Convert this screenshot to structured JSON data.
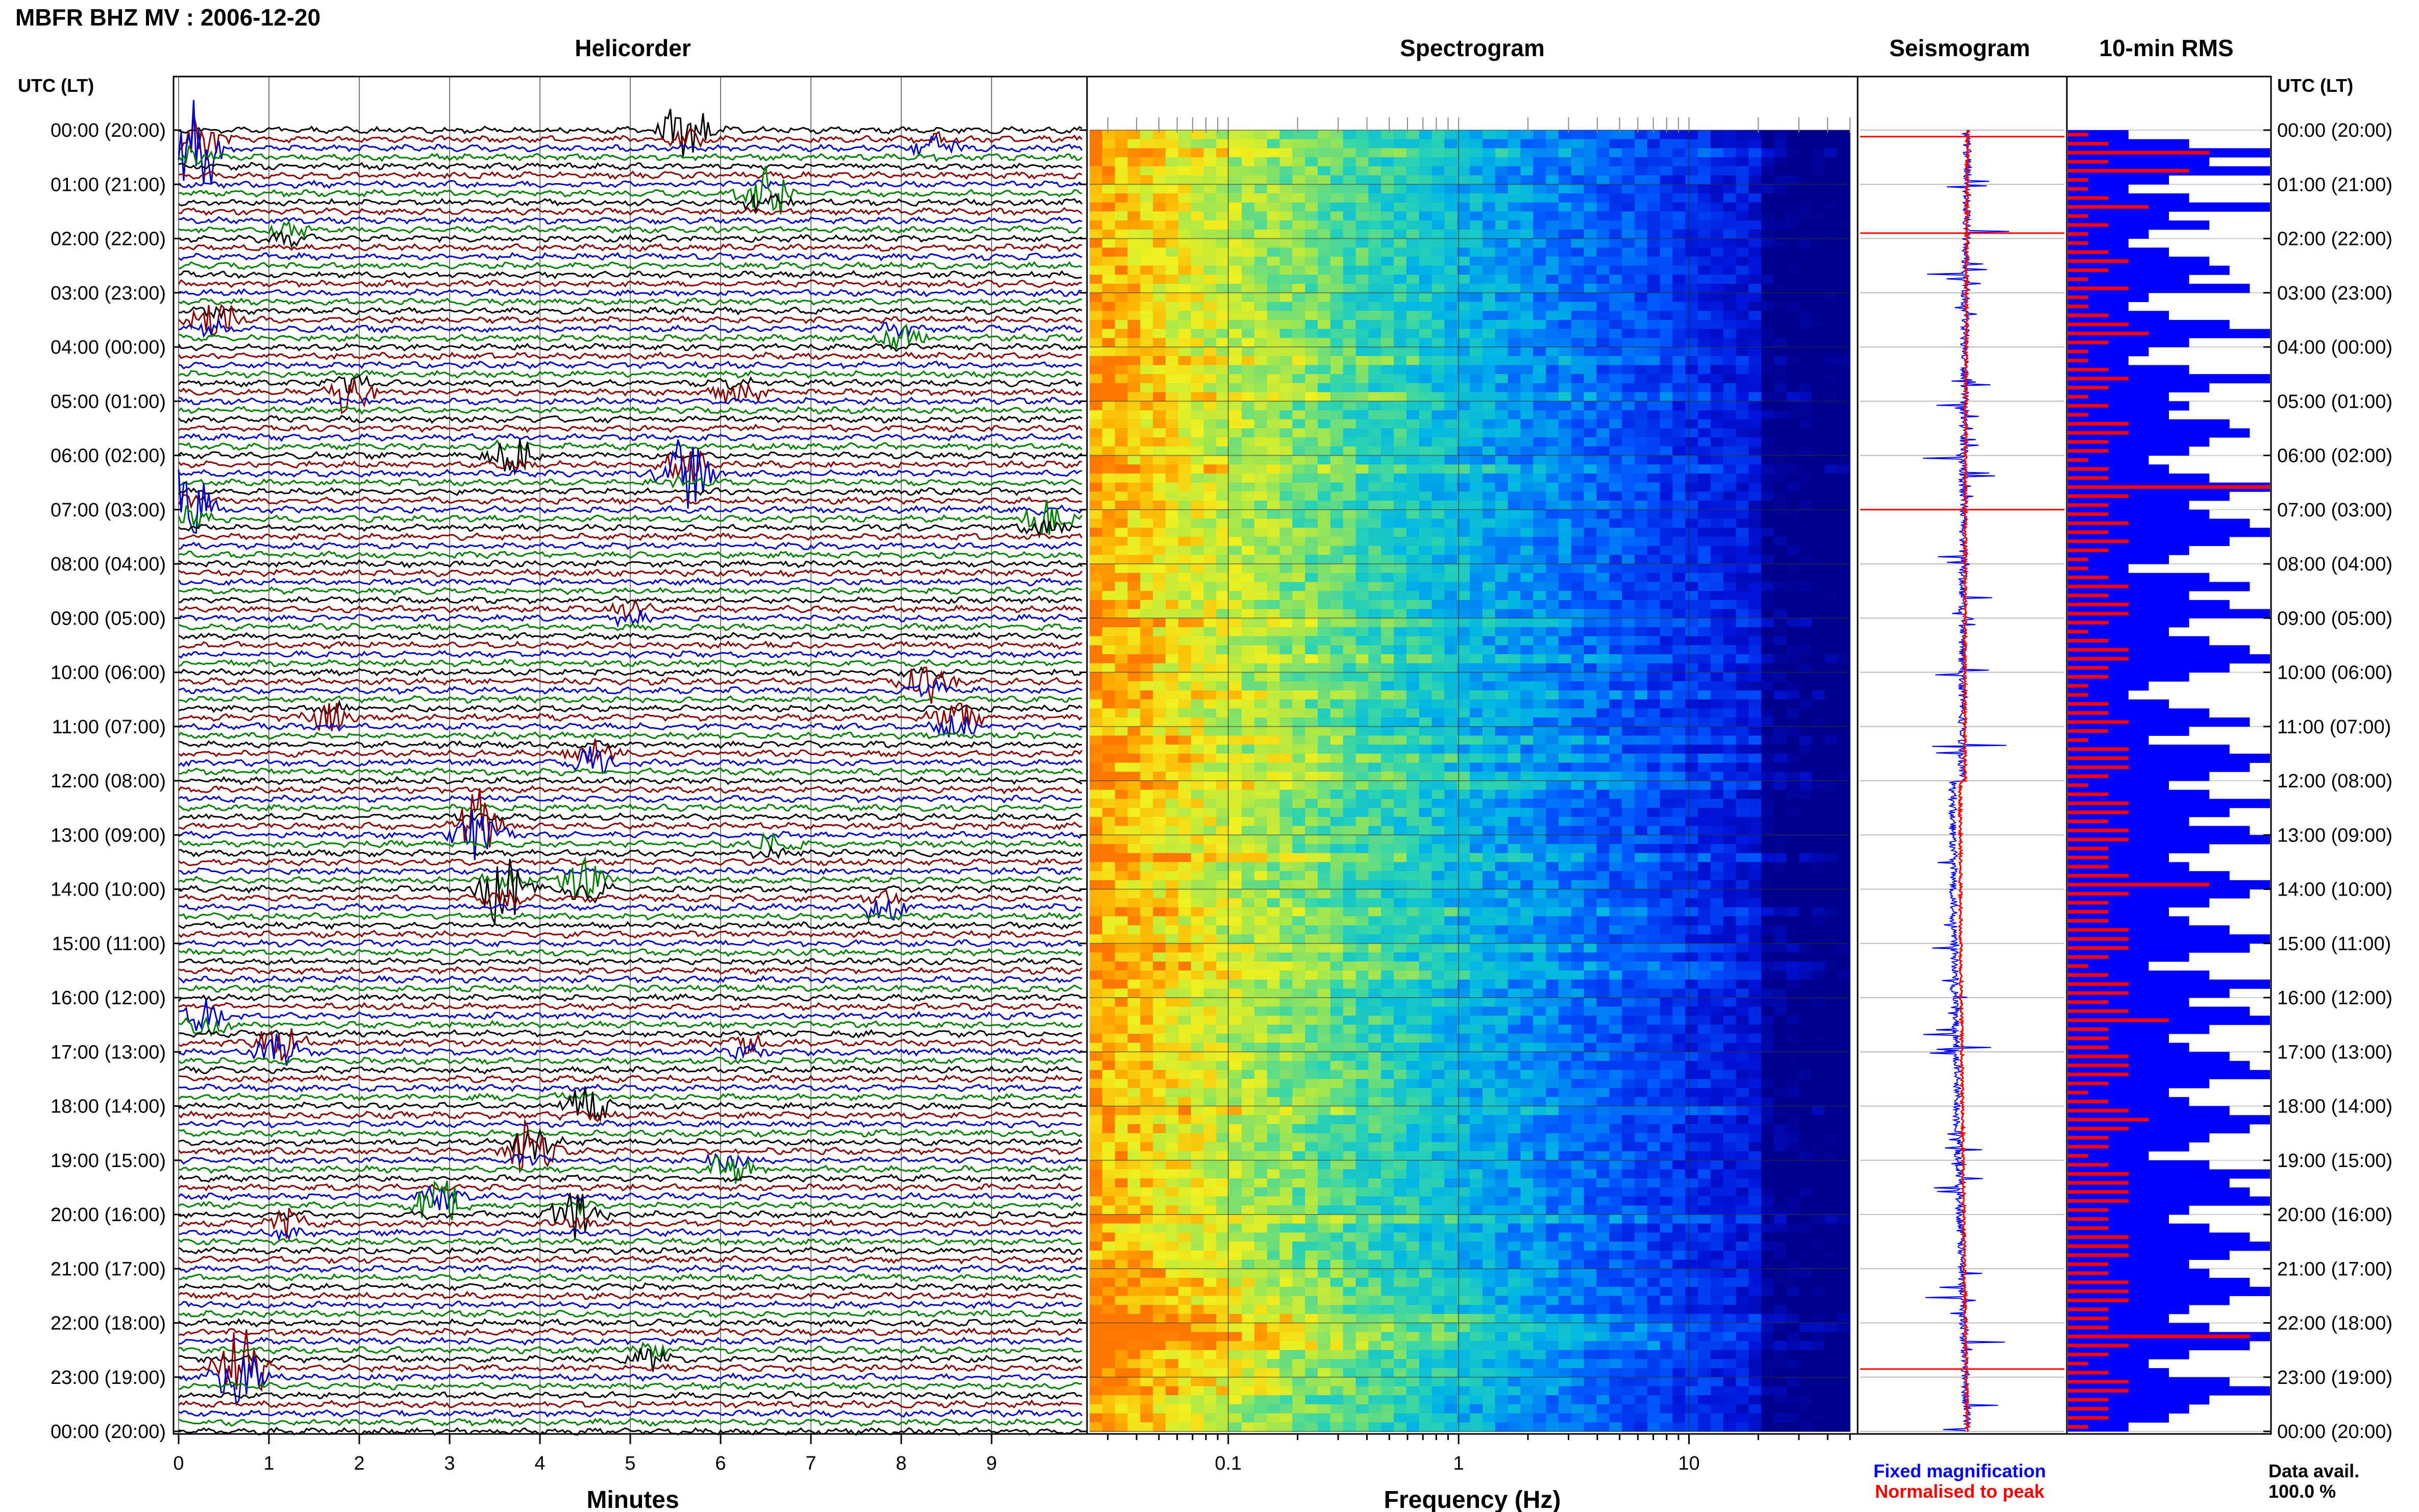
{
  "header": {
    "title": "MBFR BHZ MV : 2006-12-20"
  },
  "panels": {
    "helicorder_title": "Helicorder",
    "spectrogram_title": "Spectrogram",
    "seismogram_title": "Seismogram",
    "rms_title": "10-min RMS"
  },
  "time_axis": {
    "left_label": "UTC (LT)",
    "right_label": "UTC (LT)",
    "ticks": [
      "00:00 (20:00)",
      "01:00 (21:00)",
      "02:00 (22:00)",
      "03:00 (23:00)",
      "04:00 (00:00)",
      "05:00 (01:00)",
      "06:00 (02:00)",
      "07:00 (03:00)",
      "08:00 (04:00)",
      "09:00 (05:00)",
      "10:00 (06:00)",
      "11:00 (07:00)",
      "12:00 (08:00)",
      "13:00 (09:00)",
      "14:00 (10:00)",
      "15:00 (11:00)",
      "16:00 (12:00)",
      "17:00 (13:00)",
      "18:00 (14:00)",
      "19:00 (15:00)",
      "20:00 (16:00)",
      "21:00 (17:00)",
      "22:00 (18:00)",
      "23:00 (19:00)",
      "00:00 (20:00)"
    ]
  },
  "helicorder_axis": {
    "label": "Minutes",
    "ticks": [
      "0",
      "1",
      "2",
      "3",
      "4",
      "5",
      "6",
      "7",
      "8",
      "9"
    ]
  },
  "spectrogram_axis": {
    "label": "Frequency (Hz)",
    "ticks": [
      "0.1",
      "1",
      "10"
    ],
    "scale": "log",
    "range": [
      0.025,
      50
    ]
  },
  "legend": {
    "fixed": "Fixed magnification",
    "normalised": "Normalised to peak",
    "fixed_color": "#0000ff",
    "normalised_color": "#ff0000"
  },
  "data_avail": {
    "label": "Data avail.",
    "value": "100.0 %"
  },
  "chart_data": {
    "type": "helicorder",
    "trace_colors": [
      "#000000",
      "#8b0000",
      "#0000cd",
      "#008000"
    ],
    "lines_per_hour": 6,
    "events": [
      {
        "hour": 0.0,
        "minute": 5.6,
        "amp": 1.2,
        "color": "#0000cd"
      },
      {
        "hour": 0.3,
        "minute": 0.2,
        "amp": 2.2,
        "color": "#008000"
      },
      {
        "hour": 0.3,
        "minute": 8.4,
        "amp": 0.5,
        "color": "#008000"
      },
      {
        "hour": 1.2,
        "minute": 6.5,
        "amp": 1.3,
        "color": "#008000"
      },
      {
        "hour": 1.9,
        "minute": 1.2,
        "amp": 0.4,
        "color": "#8b0000"
      },
      {
        "hour": 3.5,
        "minute": 0.4,
        "amp": 0.8,
        "color": "#0000cd"
      },
      {
        "hour": 3.8,
        "minute": 8.0,
        "amp": 0.6,
        "color": "#000000"
      },
      {
        "hour": 4.8,
        "minute": 1.9,
        "amp": 0.8,
        "color": "#0000cd"
      },
      {
        "hour": 4.8,
        "minute": 6.2,
        "amp": 0.5,
        "color": "#000000"
      },
      {
        "hour": 6.0,
        "minute": 3.7,
        "amp": 0.7,
        "color": "#8b0000"
      },
      {
        "hour": 6.3,
        "minute": 5.6,
        "amp": 1.6,
        "color": "#000000"
      },
      {
        "hour": 7.0,
        "minute": 0.1,
        "amp": 1.6,
        "color": "#8b0000"
      },
      {
        "hour": 7.2,
        "minute": 9.6,
        "amp": 0.7,
        "color": "#0000cd"
      },
      {
        "hour": 8.9,
        "minute": 5.0,
        "amp": 0.4,
        "color": "#008000"
      },
      {
        "hour": 10.2,
        "minute": 8.3,
        "amp": 0.8,
        "color": "#0000cd"
      },
      {
        "hour": 10.8,
        "minute": 1.7,
        "amp": 0.6,
        "color": "#000000"
      },
      {
        "hour": 10.9,
        "minute": 8.6,
        "amp": 0.7,
        "color": "#000000"
      },
      {
        "hour": 11.6,
        "minute": 4.6,
        "amp": 0.8,
        "color": "#0000cd"
      },
      {
        "hour": 12.9,
        "minute": 3.3,
        "amp": 1.6,
        "color": "#8b0000"
      },
      {
        "hour": 13.2,
        "minute": 6.6,
        "amp": 0.5,
        "color": "#000000"
      },
      {
        "hour": 13.9,
        "minute": 4.5,
        "amp": 1.0,
        "color": "#0000cd"
      },
      {
        "hour": 14.0,
        "minute": 3.6,
        "amp": 1.4,
        "color": "#8b0000"
      },
      {
        "hour": 14.3,
        "minute": 7.8,
        "amp": 0.6,
        "color": "#008000"
      },
      {
        "hour": 16.4,
        "minute": 0.3,
        "amp": 0.8,
        "color": "#008000"
      },
      {
        "hour": 16.9,
        "minute": 1.1,
        "amp": 1.0,
        "color": "#000000"
      },
      {
        "hour": 16.9,
        "minute": 6.3,
        "amp": 0.5,
        "color": "#8b0000"
      },
      {
        "hour": 18.0,
        "minute": 4.5,
        "amp": 0.8,
        "color": "#8b0000"
      },
      {
        "hour": 18.8,
        "minute": 3.9,
        "amp": 1.4,
        "color": "#8b0000"
      },
      {
        "hour": 19.1,
        "minute": 6.1,
        "amp": 0.7,
        "color": "#000000"
      },
      {
        "hour": 19.8,
        "minute": 2.9,
        "amp": 1.1,
        "color": "#8b0000"
      },
      {
        "hour": 20.0,
        "minute": 4.4,
        "amp": 0.9,
        "color": "#0000cd"
      },
      {
        "hour": 20.2,
        "minute": 1.2,
        "amp": 0.6,
        "color": "#008000"
      },
      {
        "hour": 22.9,
        "minute": 0.7,
        "amp": 2.0,
        "color": "#8b0000"
      },
      {
        "hour": 22.6,
        "minute": 5.2,
        "amp": 0.5,
        "color": "#008000"
      }
    ],
    "rms_blue": [
      0.3,
      0.6,
      1.0,
      0.7,
      1.0,
      0.5,
      0.3,
      0.6,
      1.0,
      0.5,
      0.7,
      0.4,
      0.3,
      0.5,
      0.7,
      0.8,
      0.6,
      0.9,
      0.4,
      0.3,
      0.5,
      0.8,
      1.0,
      0.6,
      0.4,
      0.3,
      0.6,
      1.0,
      0.7,
      0.5,
      0.6,
      0.5,
      0.8,
      0.9,
      0.7,
      0.6,
      0.4,
      0.5,
      0.7,
      1.0,
      0.8,
      0.6,
      0.7,
      0.9,
      1.0,
      0.8,
      0.6,
      0.5,
      0.3,
      0.7,
      0.9,
      0.6,
      0.8,
      1.0,
      0.6,
      0.5,
      0.7,
      0.9,
      1.0,
      0.8,
      0.6,
      0.4,
      0.3,
      0.5,
      0.7,
      0.9,
      0.6,
      0.4,
      0.8,
      1.0,
      0.9,
      0.7,
      0.5,
      0.7,
      1.0,
      0.8,
      0.6,
      0.9,
      1.0,
      0.7,
      0.5,
      0.6,
      0.8,
      1.0,
      0.9,
      0.7,
      0.5,
      0.6,
      0.8,
      1.0,
      0.9,
      0.6,
      0.4,
      0.7,
      1.0,
      0.8,
      0.6,
      0.9,
      1.0,
      0.7,
      0.5,
      0.6,
      0.8,
      0.9,
      1.0,
      0.7,
      0.5,
      0.6,
      0.8,
      1.0,
      0.9,
      0.7,
      0.6,
      0.4,
      0.7,
      1.0,
      0.8,
      0.9,
      1.0,
      0.6,
      0.5,
      0.7,
      0.9,
      1.0,
      0.8,
      0.6,
      0.7,
      0.9,
      1.0,
      0.8,
      0.6,
      0.5,
      0.7,
      1.0,
      0.9,
      0.6,
      0.4,
      0.5,
      0.8,
      1.0,
      0.7,
      0.6,
      0.5,
      0.3
    ],
    "rms_red": [
      0.1,
      0.2,
      0.7,
      0.2,
      0.6,
      0.1,
      0.1,
      0.2,
      0.4,
      0.1,
      0.2,
      0.1,
      0.1,
      0.2,
      0.3,
      0.2,
      0.1,
      0.3,
      0.1,
      0.1,
      0.2,
      0.3,
      0.4,
      0.2,
      0.1,
      0.1,
      0.2,
      0.3,
      0.2,
      0.1,
      0.2,
      0.1,
      0.3,
      0.3,
      0.2,
      0.2,
      0.1,
      0.2,
      0.2,
      1.0,
      0.3,
      0.2,
      0.2,
      0.3,
      0.2,
      0.3,
      0.2,
      0.1,
      0.1,
      0.2,
      0.3,
      0.2,
      0.3,
      0.3,
      0.2,
      0.1,
      0.2,
      0.3,
      0.3,
      0.2,
      0.2,
      0.1,
      0.1,
      0.2,
      0.2,
      0.3,
      0.2,
      0.1,
      0.3,
      0.3,
      0.3,
      0.2,
      0.1,
      0.2,
      0.3,
      0.3,
      0.2,
      0.3,
      0.3,
      0.2,
      0.2,
      0.2,
      0.3,
      0.7,
      0.3,
      0.2,
      0.2,
      0.2,
      0.3,
      0.3,
      0.3,
      0.2,
      0.1,
      0.2,
      0.3,
      0.3,
      0.2,
      0.3,
      0.5,
      0.2,
      0.2,
      0.2,
      0.3,
      0.3,
      0.3,
      0.2,
      0.1,
      0.2,
      0.3,
      0.4,
      0.3,
      0.2,
      0.2,
      0.1,
      0.2,
      0.3,
      0.3,
      0.3,
      0.3,
      0.2,
      0.2,
      0.2,
      0.3,
      0.3,
      0.3,
      0.2,
      0.2,
      0.3,
      0.3,
      0.3,
      0.2,
      0.2,
      0.2,
      0.9,
      0.3,
      0.2,
      0.1,
      0.2,
      0.3,
      0.3,
      0.2,
      0.2,
      0.2,
      0.1
    ]
  }
}
